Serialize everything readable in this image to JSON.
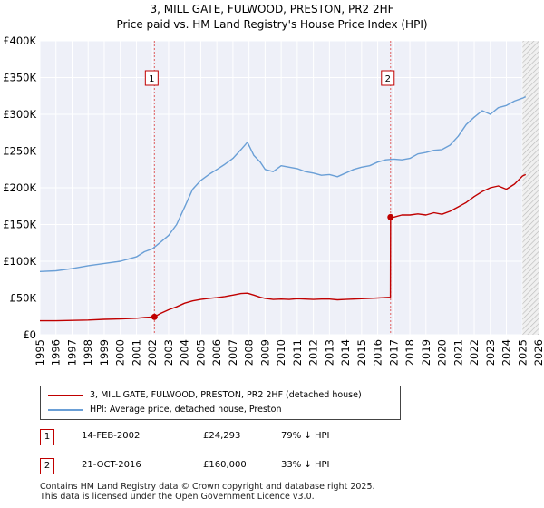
{
  "title_line1": "3, MILL GATE, FULWOOD, PRESTON, PR2 2HF",
  "title_line2": "Price paid vs. HM Land Registry's House Price Index (HPI)",
  "chart_data": {
    "type": "line",
    "title": "3, MILL GATE, FULWOOD, PRESTON, PR2 2HF - Price paid vs. HM Land Registry's House Price Index (HPI)",
    "xlabel": "",
    "ylabel": "",
    "xlim": [
      1995,
      2026
    ],
    "ylim": [
      0,
      400000
    ],
    "y_ticks": [
      0,
      50000,
      100000,
      150000,
      200000,
      250000,
      300000,
      350000,
      400000
    ],
    "y_tick_labels": [
      "£0",
      "£50K",
      "£100K",
      "£150K",
      "£200K",
      "£250K",
      "£300K",
      "£350K",
      "£400K"
    ],
    "x_ticks": [
      1995,
      1996,
      1997,
      1998,
      1999,
      2000,
      2001,
      2002,
      2003,
      2004,
      2005,
      2006,
      2007,
      2008,
      2009,
      2010,
      2011,
      2012,
      2013,
      2014,
      2015,
      2016,
      2017,
      2018,
      2019,
      2020,
      2021,
      2022,
      2023,
      2024,
      2025,
      2026
    ],
    "x_tick_labels": [
      "1995",
      "1996",
      "1997",
      "1998",
      "1999",
      "2000",
      "2001",
      "2002",
      "2003",
      "2004",
      "2005",
      "2006",
      "2007",
      "2008",
      "2009",
      "2010",
      "2011",
      "2012",
      "2013",
      "2014",
      "2015",
      "2016",
      "2017",
      "2018",
      "2019",
      "2020",
      "2021",
      "2022",
      "2023",
      "2024",
      "2025",
      "2026"
    ],
    "grid": true,
    "hatch_from": 2025.0,
    "series": [
      {
        "name": "3, MILL GATE, FULWOOD, PRESTON, PR2 2HF (detached house)",
        "color": "#c00000",
        "x": [
          1995.0,
          1996.0,
          1997.0,
          1998.0,
          1999.0,
          2000.0,
          2001.0,
          2001.5,
          2002.12,
          2002.5,
          2003.0,
          2003.5,
          2004.0,
          2004.5,
          2005.0,
          2005.5,
          2006.0,
          2006.5,
          2007.0,
          2007.5,
          2007.9,
          2008.3,
          2008.7,
          2009.0,
          2009.5,
          2010.0,
          2010.5,
          2011.0,
          2011.5,
          2012.0,
          2012.5,
          2013.0,
          2013.5,
          2014.0,
          2014.5,
          2015.0,
          2015.5,
          2016.0,
          2016.79,
          2016.8,
          2017.0,
          2017.5,
          2018.0,
          2018.5,
          2019.0,
          2019.5,
          2020.0,
          2020.5,
          2021.0,
          2021.5,
          2022.0,
          2022.5,
          2023.0,
          2023.5,
          2024.0,
          2024.5,
          2025.0,
          2025.2
        ],
        "y": [
          19000,
          19000,
          19500,
          20000,
          21000,
          21500,
          22500,
          23500,
          24293,
          29000,
          34000,
          38000,
          43000,
          46000,
          48000,
          49500,
          50500,
          52000,
          54000,
          56000,
          56500,
          54000,
          51000,
          49500,
          48000,
          48500,
          48000,
          49000,
          48500,
          48000,
          48500,
          48500,
          47500,
          48000,
          48500,
          49000,
          49500,
          50000,
          51000,
          160000,
          160000,
          163000,
          163000,
          164500,
          163000,
          166000,
          164000,
          168000,
          174000,
          180000,
          188000,
          195000,
          200000,
          202500,
          198000,
          205000,
          216000,
          218000
        ]
      },
      {
        "name": "HPI: Average price, detached house, Preston",
        "color": "#6a9fd6",
        "x": [
          1995.0,
          1996.0,
          1997.0,
          1998.0,
          1999.0,
          2000.0,
          2000.5,
          2001.0,
          2001.5,
          2002.0,
          2002.5,
          2003.0,
          2003.5,
          2004.0,
          2004.5,
          2005.0,
          2005.5,
          2006.0,
          2006.5,
          2007.0,
          2007.5,
          2007.9,
          2008.3,
          2008.7,
          2009.0,
          2009.5,
          2010.0,
          2010.5,
          2011.0,
          2011.5,
          2012.0,
          2012.5,
          2013.0,
          2013.5,
          2014.0,
          2014.5,
          2015.0,
          2015.5,
          2016.0,
          2016.5,
          2017.0,
          2017.5,
          2018.0,
          2018.5,
          2019.0,
          2019.5,
          2020.0,
          2020.5,
          2021.0,
          2021.5,
          2022.0,
          2022.5,
          2023.0,
          2023.5,
          2024.0,
          2024.5,
          2025.0,
          2025.2
        ],
        "y": [
          86000,
          87000,
          90000,
          94000,
          97000,
          100000,
          103000,
          106000,
          113000,
          117000,
          126000,
          135000,
          150000,
          174000,
          198000,
          210000,
          218000,
          225000,
          232000,
          240000,
          252000,
          262000,
          244000,
          235000,
          225000,
          222000,
          230000,
          228000,
          226000,
          222000,
          220000,
          217000,
          218000,
          215000,
          220000,
          225000,
          228000,
          230000,
          235000,
          238000,
          239000,
          238000,
          240000,
          246000,
          248000,
          251000,
          252000,
          258000,
          270000,
          286000,
          296000,
          305000,
          300000,
          309000,
          312000,
          318000,
          322000,
          324000
        ]
      }
    ],
    "markers": [
      {
        "label": "1",
        "x": 2002.12,
        "y": 24293
      },
      {
        "label": "2",
        "x": 2016.8,
        "y": 160000
      }
    ]
  },
  "legend": {
    "property_label": "3, MILL GATE, FULWOOD, PRESTON, PR2 2HF (detached house)",
    "hpi_label": "HPI: Average price, detached house, Preston",
    "property_color": "#c00000",
    "hpi_color": "#6a9fd6"
  },
  "sales": [
    {
      "num": "1",
      "date": "14-FEB-2002",
      "price": "£24,293",
      "hpi": "79% ↓ HPI"
    },
    {
      "num": "2",
      "date": "21-OCT-2016",
      "price": "£160,000",
      "hpi": "33% ↓ HPI"
    }
  ],
  "footer_line1": "Contains HM Land Registry data © Crown copyright and database right 2025.",
  "footer_line2": "This data is licensed under the Open Government Licence v3.0."
}
